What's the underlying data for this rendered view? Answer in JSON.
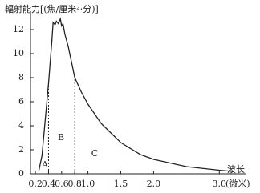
{
  "chart_data": {
    "type": "line",
    "y_label": "輻射能力[(焦/厘米²·分)]",
    "x_label": "波长",
    "x_unit": "(微米)",
    "series": [
      {
        "color": "#222222",
        "x": [
          0.25,
          0.3,
          0.35,
          0.4,
          0.45,
          0.47,
          0.5,
          0.52,
          0.55,
          0.58,
          0.6,
          0.62,
          0.65,
          0.7,
          0.8,
          0.9,
          1.0,
          1.2,
          1.5,
          1.8,
          2.0,
          2.5,
          3.0,
          3.2
        ],
        "values": [
          0.2,
          1.5,
          4.5,
          7.5,
          11.0,
          12.6,
          12.4,
          12.7,
          12.5,
          12.9,
          12.3,
          12.5,
          11.6,
          10.6,
          8.0,
          6.8,
          5.8,
          4.2,
          2.6,
          1.6,
          1.2,
          0.6,
          0.3,
          0.2
        ]
      }
    ],
    "dividers": [
      0.4,
      0.8
    ],
    "annotations": [
      "A",
      "B",
      "C"
    ],
    "xlim": [
      0.15,
      3.4
    ],
    "ylim": [
      0,
      13.5
    ],
    "xticks": [
      0.2,
      0.4,
      0.6,
      0.8,
      {
        "value": 1,
        "label": "1.0"
      },
      1.5,
      {
        "value": 2,
        "label": "2.0"
      },
      {
        "value": 3,
        "label": "3.0"
      }
    ],
    "yticks": [
      0,
      2,
      4,
      6,
      8,
      10,
      12
    ],
    "grid": false
  }
}
